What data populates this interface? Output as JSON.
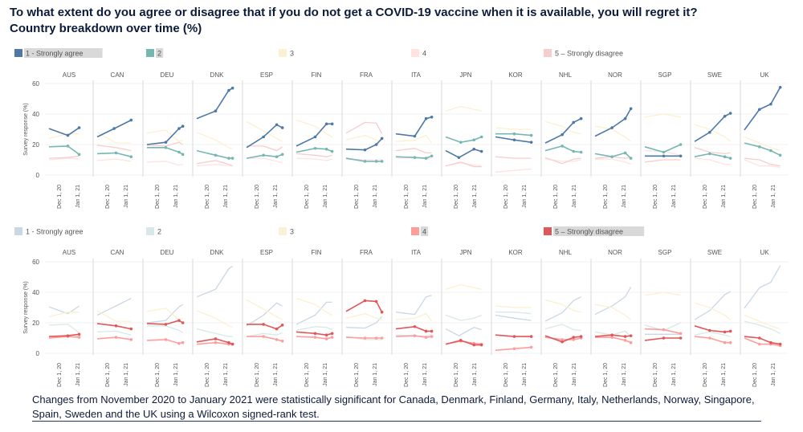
{
  "title": {
    "line1": "To what extent do you agree or disagree that if you do not get a COVID-19 vaccine when it is available, you will regret it?",
    "line2": "Country breakdown over time (%)"
  },
  "footnote": "Changes from November 2020 to January 2021 were statistically significant for Canada, Denmark, Finland, Germany, Italy, Netherlands, Norway, Singapore, Spain, Sweden and the UK using a Wilcoxon signed-rank test.",
  "chart_data": {
    "type": "line",
    "countries": [
      "AUS",
      "CAN",
      "DEU",
      "DNK",
      "ESP",
      "FIN",
      "FRA",
      "ITA",
      "JPN",
      "KOR",
      "NHL",
      "NOR",
      "SGP",
      "SWE",
      "UK"
    ],
    "x_ticks": [
      "Dec 1, 20",
      "Jan 1, 21"
    ],
    "y_ticks": [
      0,
      20,
      40,
      60
    ],
    "ylim": [
      0,
      60
    ],
    "ylabel": "Survey response (%)",
    "series_names": [
      "1 - Strongly agree",
      "2",
      "3",
      "4",
      "5 – Strongly disagree"
    ],
    "colors": [
      "#4e79a7",
      "#76b7b2",
      "#f1ce63",
      "#ff9d9a",
      "#e15759"
    ],
    "panels": [
      {
        "highlight": [
          0,
          1
        ]
      },
      {
        "highlight": [
          3,
          4
        ]
      }
    ],
    "series": [
      [
        [
          [
            0,
            30.5
          ],
          [
            0.5,
            26
          ],
          [
            0.8,
            31
          ]
        ],
        [
          [
            0,
            25
          ],
          [
            0.45,
            30.5
          ],
          [
            0.9,
            36
          ]
        ],
        [
          [
            0,
            20
          ],
          [
            0.5,
            21.5
          ],
          [
            0.85,
            30.5
          ],
          [
            0.95,
            32
          ]
        ],
        [
          [
            0,
            37
          ],
          [
            0.5,
            42
          ],
          [
            0.85,
            55.5
          ],
          [
            0.95,
            57
          ]
        ],
        [
          [
            0,
            18
          ],
          [
            0.45,
            25
          ],
          [
            0.8,
            33
          ],
          [
            0.95,
            31
          ]
        ],
        [
          [
            0,
            19
          ],
          [
            0.5,
            25
          ],
          [
            0.8,
            33.5
          ],
          [
            0.95,
            33.5
          ]
        ],
        [
          [
            0,
            17
          ],
          [
            0.5,
            16.5
          ],
          [
            0.8,
            20
          ],
          [
            0.95,
            24
          ]
        ],
        [
          [
            0,
            27
          ],
          [
            0.5,
            25.5
          ],
          [
            0.8,
            37
          ],
          [
            0.95,
            38
          ]
        ],
        [
          [
            0,
            16
          ],
          [
            0.35,
            11.5
          ],
          [
            0.75,
            17
          ],
          [
            0.95,
            15.5
          ]
        ],
        [
          [
            0,
            25
          ],
          [
            0.5,
            23
          ],
          [
            0.95,
            21.5
          ]
        ],
        [
          [
            0,
            21
          ],
          [
            0.45,
            26.5
          ],
          [
            0.75,
            34.5
          ],
          [
            0.95,
            37
          ]
        ],
        [
          [
            0,
            25.5
          ],
          [
            0.45,
            31
          ],
          [
            0.8,
            37
          ],
          [
            0.95,
            43.5
          ]
        ],
        [
          [
            0,
            12.5
          ],
          [
            0.5,
            12.5
          ],
          [
            0.95,
            12.5
          ]
        ],
        [
          [
            0,
            22
          ],
          [
            0.4,
            28
          ],
          [
            0.8,
            38.5
          ],
          [
            0.95,
            40.5
          ]
        ],
        [
          [
            0,
            29.5
          ],
          [
            0.4,
            43
          ],
          [
            0.7,
            46.5
          ],
          [
            0.95,
            57.5
          ]
        ]
      ],
      [
        [
          [
            0,
            18.5
          ],
          [
            0.5,
            19
          ],
          [
            0.8,
            13.5
          ]
        ],
        [
          [
            0,
            14
          ],
          [
            0.5,
            14.5
          ],
          [
            0.9,
            12
          ]
        ],
        [
          [
            0,
            18
          ],
          [
            0.5,
            18
          ],
          [
            0.85,
            15
          ],
          [
            0.95,
            13.5
          ]
        ],
        [
          [
            0,
            16
          ],
          [
            0.5,
            13
          ],
          [
            0.85,
            11
          ],
          [
            0.95,
            11
          ]
        ],
        [
          [
            0,
            11
          ],
          [
            0.45,
            13
          ],
          [
            0.8,
            12
          ],
          [
            0.95,
            13.5
          ]
        ],
        [
          [
            0,
            15
          ],
          [
            0.5,
            17.5
          ],
          [
            0.8,
            17
          ],
          [
            0.95,
            15.5
          ]
        ],
        [
          [
            0,
            11
          ],
          [
            0.5,
            9
          ],
          [
            0.8,
            9
          ],
          [
            0.95,
            9
          ]
        ],
        [
          [
            0,
            12
          ],
          [
            0.5,
            11.5
          ],
          [
            0.8,
            11
          ],
          [
            0.95,
            12.5
          ]
        ],
        [
          [
            0,
            25
          ],
          [
            0.4,
            21.5
          ],
          [
            0.75,
            23
          ],
          [
            0.95,
            25
          ]
        ],
        [
          [
            0,
            27
          ],
          [
            0.5,
            27
          ],
          [
            0.95,
            26
          ]
        ],
        [
          [
            0,
            16
          ],
          [
            0.45,
            19
          ],
          [
            0.75,
            15.5
          ],
          [
            0.95,
            15
          ]
        ],
        [
          [
            0,
            14
          ],
          [
            0.45,
            12
          ],
          [
            0.8,
            14.5
          ],
          [
            0.95,
            11
          ]
        ],
        [
          [
            0,
            18.5
          ],
          [
            0.5,
            15
          ],
          [
            0.95,
            20
          ]
        ],
        [
          [
            0,
            12
          ],
          [
            0.4,
            14
          ],
          [
            0.8,
            12
          ],
          [
            0.95,
            11
          ]
        ],
        [
          [
            0,
            21
          ],
          [
            0.4,
            18.5
          ],
          [
            0.7,
            16
          ],
          [
            0.95,
            13
          ]
        ]
      ],
      [
        [
          [
            0,
            24
          ],
          [
            0.5,
            27
          ],
          [
            0.8,
            27
          ]
        ],
        [
          [
            0,
            28
          ],
          [
            0.5,
            21
          ],
          [
            0.9,
            21
          ]
        ],
        [
          [
            0,
            27.5
          ],
          [
            0.5,
            29.5
          ],
          [
            0.85,
            22
          ],
          [
            0.95,
            23
          ]
        ],
        [
          [
            0,
            28
          ],
          [
            0.5,
            23
          ],
          [
            0.85,
            18
          ],
          [
            0.95,
            17
          ]
        ],
        [
          [
            0,
            35
          ],
          [
            0.45,
            29
          ],
          [
            0.8,
            24
          ],
          [
            0.95,
            22
          ]
        ],
        [
          [
            0,
            36
          ],
          [
            0.5,
            32
          ],
          [
            0.8,
            27
          ],
          [
            0.95,
            25
          ]
        ],
        [
          [
            0,
            23
          ],
          [
            0.5,
            26
          ],
          [
            0.8,
            23
          ],
          [
            0.95,
            22
          ]
        ],
        [
          [
            0,
            22
          ],
          [
            0.5,
            23
          ],
          [
            0.8,
            26
          ],
          [
            0.95,
            21
          ]
        ],
        [
          [
            0,
            42
          ],
          [
            0.4,
            45
          ],
          [
            0.75,
            43
          ],
          [
            0.95,
            42
          ]
        ],
        [
          [
            0,
            31
          ],
          [
            0.5,
            30
          ],
          [
            0.95,
            30
          ]
        ],
        [
          [
            0,
            35
          ],
          [
            0.45,
            32
          ],
          [
            0.75,
            28
          ],
          [
            0.95,
            27
          ]
        ],
        [
          [
            0,
            32
          ],
          [
            0.45,
            30
          ],
          [
            0.8,
            25
          ],
          [
            0.95,
            22
          ]
        ],
        [
          [
            0,
            38
          ],
          [
            0.5,
            40
          ],
          [
            0.95,
            38
          ]
        ],
        [
          [
            0,
            33
          ],
          [
            0.4,
            30
          ],
          [
            0.8,
            25
          ],
          [
            0.95,
            22
          ]
        ],
        [
          [
            0,
            25
          ],
          [
            0.4,
            21
          ],
          [
            0.7,
            18
          ],
          [
            0.95,
            16
          ]
        ]
      ],
      [
        [
          [
            0,
            10
          ],
          [
            0.5,
            11
          ],
          [
            0.8,
            10.5
          ]
        ],
        [
          [
            0,
            9.5
          ],
          [
            0.5,
            10.5
          ],
          [
            0.9,
            9
          ]
        ],
        [
          [
            0,
            8.5
          ],
          [
            0.5,
            9
          ],
          [
            0.85,
            6.5
          ],
          [
            0.95,
            7
          ]
        ],
        [
          [
            0,
            6
          ],
          [
            0.5,
            7
          ],
          [
            0.85,
            6
          ],
          [
            0.95,
            6
          ]
        ],
        [
          [
            0,
            11
          ],
          [
            0.45,
            11
          ],
          [
            0.8,
            9
          ],
          [
            0.95,
            8
          ]
        ],
        [
          [
            0,
            11
          ],
          [
            0.5,
            10.5
          ],
          [
            0.8,
            9.5
          ],
          [
            0.95,
            10.5
          ]
        ],
        [
          [
            0,
            10.5
          ],
          [
            0.5,
            10
          ],
          [
            0.8,
            10
          ],
          [
            0.95,
            10
          ]
        ],
        [
          [
            0,
            11
          ],
          [
            0.5,
            11.5
          ],
          [
            0.8,
            10.5
          ],
          [
            0.95,
            11
          ]
        ],
        [
          [
            0,
            6
          ],
          [
            0.4,
            8
          ],
          [
            0.75,
            6.5
          ],
          [
            0.95,
            6
          ]
        ],
        [
          [
            0,
            2
          ],
          [
            0.5,
            3
          ],
          [
            0.95,
            4
          ]
        ],
        [
          [
            0,
            10.5
          ],
          [
            0.45,
            9
          ],
          [
            0.75,
            9
          ],
          [
            0.95,
            10
          ]
        ],
        [
          [
            0,
            10.5
          ],
          [
            0.45,
            10.5
          ],
          [
            0.8,
            8.5
          ],
          [
            0.95,
            7
          ]
        ],
        [
          [
            0,
            16
          ],
          [
            0.5,
            15.5
          ],
          [
            0.95,
            13
          ]
        ],
        [
          [
            0,
            11
          ],
          [
            0.4,
            10
          ],
          [
            0.8,
            7
          ],
          [
            0.95,
            7
          ]
        ],
        [
          [
            0,
            10
          ],
          [
            0.4,
            6
          ],
          [
            0.7,
            6
          ],
          [
            0.95,
            5
          ]
        ]
      ],
      [
        [
          [
            0,
            11
          ],
          [
            0.5,
            11.5
          ],
          [
            0.8,
            12.5
          ]
        ],
        [
          [
            0,
            19.5
          ],
          [
            0.5,
            18
          ],
          [
            0.9,
            16
          ]
        ],
        [
          [
            0,
            19.5
          ],
          [
            0.5,
            19
          ],
          [
            0.85,
            21.5
          ],
          [
            0.95,
            20
          ]
        ],
        [
          [
            0,
            7.5
          ],
          [
            0.5,
            9.5
          ],
          [
            0.85,
            7
          ],
          [
            0.95,
            6
          ]
        ],
        [
          [
            0,
            19
          ],
          [
            0.45,
            19
          ],
          [
            0.8,
            16
          ],
          [
            0.95,
            18.5
          ]
        ],
        [
          [
            0,
            14
          ],
          [
            0.5,
            13
          ],
          [
            0.8,
            12
          ],
          [
            0.95,
            13
          ]
        ],
        [
          [
            0,
            27.5
          ],
          [
            0.5,
            34.5
          ],
          [
            0.8,
            34
          ],
          [
            0.95,
            27
          ]
        ],
        [
          [
            0,
            16
          ],
          [
            0.5,
            17.5
          ],
          [
            0.8,
            14.5
          ],
          [
            0.95,
            14.5
          ]
        ],
        [
          [
            0,
            6
          ],
          [
            0.4,
            8.5
          ],
          [
            0.75,
            5.5
          ],
          [
            0.95,
            5.5
          ]
        ],
        [
          [
            0,
            12
          ],
          [
            0.5,
            11
          ],
          [
            0.95,
            11
          ]
        ],
        [
          [
            0,
            11.5
          ],
          [
            0.45,
            7.5
          ],
          [
            0.75,
            10.5
          ],
          [
            0.95,
            11
          ]
        ],
        [
          [
            0,
            11
          ],
          [
            0.45,
            12
          ],
          [
            0.8,
            11
          ],
          [
            0.95,
            11.5
          ]
        ],
        [
          [
            0,
            8.5
          ],
          [
            0.5,
            10
          ],
          [
            0.95,
            10
          ]
        ],
        [
          [
            0,
            18
          ],
          [
            0.4,
            15
          ],
          [
            0.8,
            14
          ],
          [
            0.95,
            14.5
          ]
        ],
        [
          [
            0,
            11
          ],
          [
            0.4,
            10
          ],
          [
            0.7,
            7
          ],
          [
            0.95,
            6
          ]
        ]
      ]
    ]
  }
}
